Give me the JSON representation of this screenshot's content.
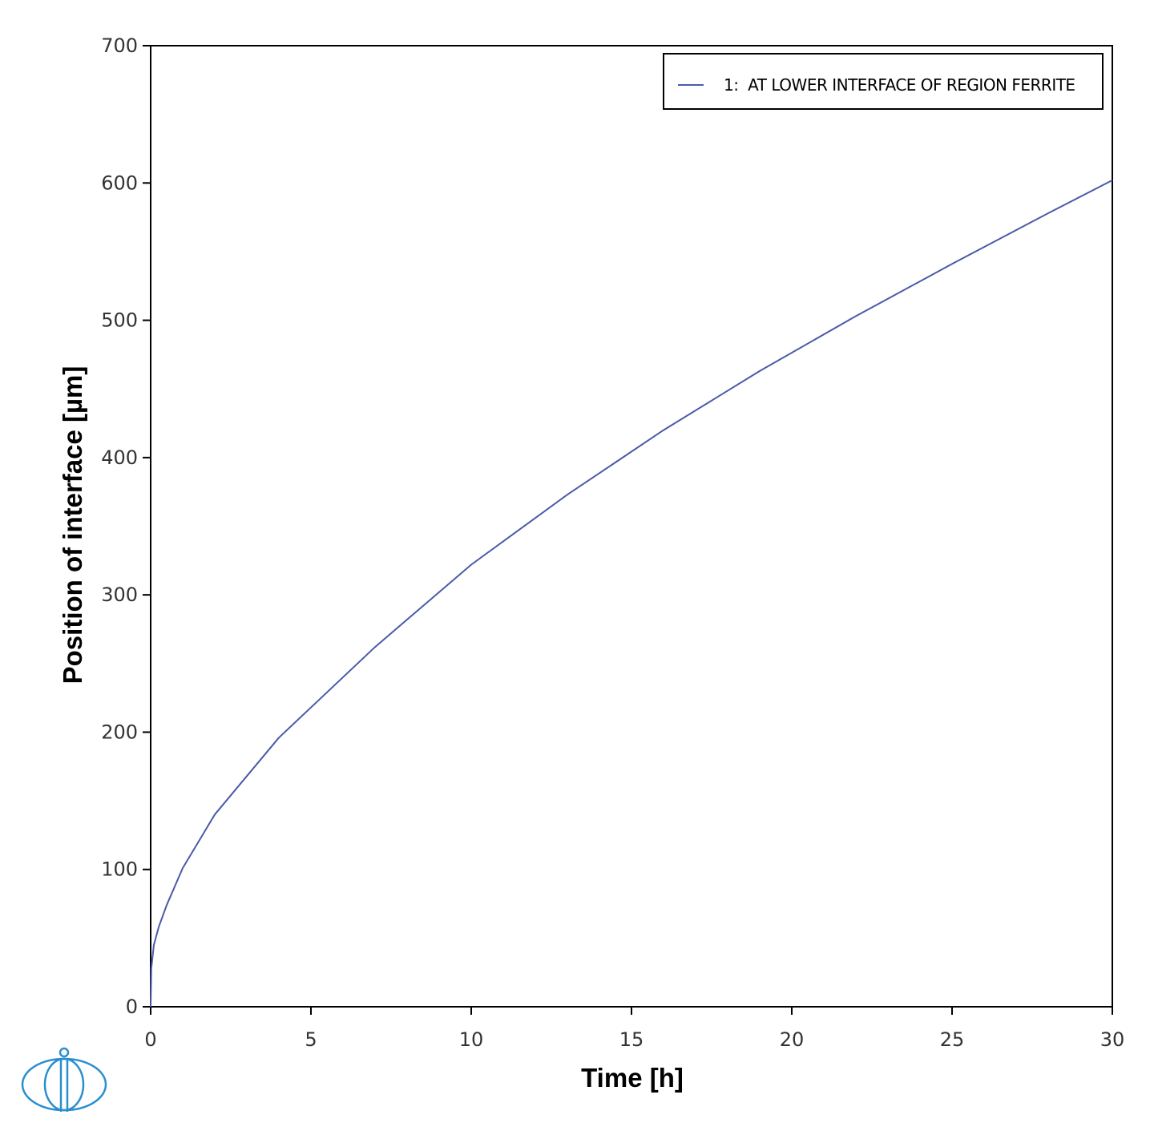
{
  "chart_data": {
    "type": "line",
    "title": "",
    "xlabel": "Time [h]",
    "ylabel": "Position of interface [µm]",
    "xlim": [
      0,
      30
    ],
    "ylim": [
      0,
      700
    ],
    "x_ticks": [
      0,
      5,
      10,
      15,
      20,
      25,
      30
    ],
    "y_ticks": [
      0,
      100,
      200,
      300,
      400,
      500,
      600,
      700
    ],
    "grid": false,
    "legend_position": "top-right",
    "series": [
      {
        "name": "1:  AT LOWER INTERFACE OF REGION FERRITE",
        "color": "#4a5aa8",
        "x": [
          0,
          0.02,
          0.1,
          0.25,
          0.5,
          1,
          2,
          4,
          7,
          10,
          13,
          16,
          19,
          22,
          25,
          28,
          30
        ],
        "y": [
          0,
          28,
          45,
          58,
          74,
          101,
          140,
          196,
          262,
          322,
          373,
          420,
          463,
          503,
          541,
          578,
          602
        ]
      }
    ]
  },
  "logo": {
    "name": "thermo-calc-logo",
    "color": "#2a8fd0"
  }
}
